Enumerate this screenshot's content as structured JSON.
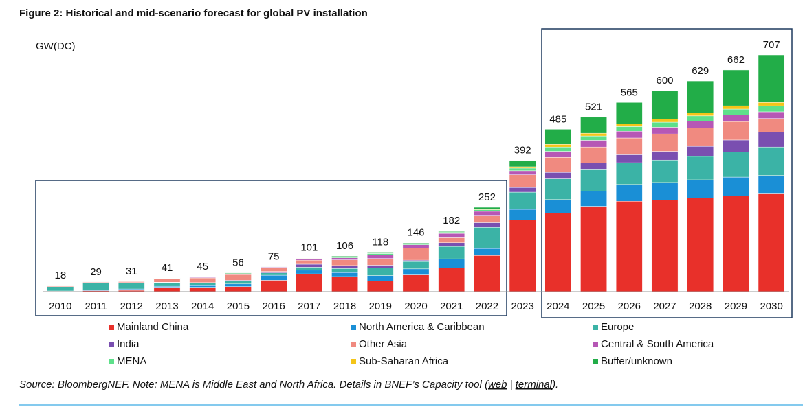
{
  "chart_data": {
    "type": "stacked_bar",
    "title": "Figure 2:  Historical and mid-scenario forecast for global PV installation",
    "unit_label": "GW(DC)",
    "categories": [
      "2010",
      "2011",
      "2012",
      "2013",
      "2014",
      "2015",
      "2016",
      "2017",
      "2018",
      "2019",
      "2020",
      "2021",
      "2022",
      "2023",
      "2024",
      "2025",
      "2026",
      "2027",
      "2028",
      "2029",
      "2030"
    ],
    "totals": [
      18,
      29,
      31,
      41,
      45,
      56,
      75,
      101,
      106,
      118,
      146,
      182,
      252,
      392,
      485,
      521,
      565,
      600,
      629,
      662,
      707
    ],
    "series": [
      {
        "name": "Mainland China",
        "color": "#e8302a",
        "values": [
          1,
          3,
          4,
          11,
          11,
          15,
          34,
          53,
          45,
          32,
          50,
          71,
          108,
          214,
          235,
          255,
          270,
          274,
          280,
          286,
          292
        ]
      },
      {
        "name": "North America & Caribbean",
        "color": "#1a8fd6",
        "values": [
          1,
          2,
          4,
          5,
          7,
          8,
          15,
          11,
          12,
          16,
          18,
          27,
          21,
          32,
          40,
          45,
          50,
          52,
          54,
          56,
          55
        ]
      },
      {
        "name": "Europe",
        "color": "#3bb3a6",
        "values": [
          13,
          21,
          18,
          11,
          8,
          9,
          7,
          9,
          12,
          23,
          22,
          37,
          63,
          51,
          62,
          64,
          65,
          67,
          70,
          75,
          85
        ]
      },
      {
        "name": "India",
        "color": "#7a4fb0",
        "values": [
          0,
          0,
          1,
          1,
          1,
          2,
          4,
          9,
          9,
          8,
          4,
          11,
          14,
          14,
          19,
          20,
          24,
          26,
          30,
          36,
          45
        ]
      },
      {
        "name": "Other Asia",
        "color": "#f08a80",
        "values": [
          2,
          2,
          3,
          11,
          14,
          17,
          11,
          12,
          17,
          20,
          36,
          15,
          20,
          38,
          45,
          48,
          50,
          52,
          55,
          55,
          40
        ]
      },
      {
        "name": "Central & South America",
        "color": "#b657b5",
        "values": [
          0,
          0,
          0,
          1,
          2,
          2,
          2,
          4,
          6,
          11,
          10,
          13,
          14,
          12,
          18,
          20,
          20,
          20,
          20,
          20,
          20
        ]
      },
      {
        "name": "MENA",
        "color": "#5ee08a",
        "values": [
          0,
          0,
          0,
          0,
          1,
          1,
          1,
          1,
          2,
          4,
          3,
          4,
          5,
          8,
          13,
          13,
          14,
          15,
          16,
          17,
          18
        ]
      },
      {
        "name": "Sub-Saharan Africa",
        "color": "#f4c518",
        "values": [
          0,
          0,
          0,
          0,
          0,
          0,
          0,
          1,
          1,
          1,
          1,
          1,
          2,
          4,
          8,
          8,
          8,
          9,
          9,
          10,
          10
        ]
      },
      {
        "name": "Buffer/unknown",
        "color": "#22ad48",
        "values": [
          1,
          1,
          1,
          1,
          1,
          2,
          1,
          1,
          2,
          3,
          2,
          3,
          5,
          19,
          45,
          48,
          64,
          85,
          95,
          107,
          142
        ]
      }
    ],
    "source": {
      "text": "Source: BloombergNEF. Note: MENA is Middle East and North Africa. Details in BNEF’s Capacity tool (",
      "link1": "web",
      "sep": " | ",
      "link2": "terminal",
      "end": ")."
    }
  }
}
